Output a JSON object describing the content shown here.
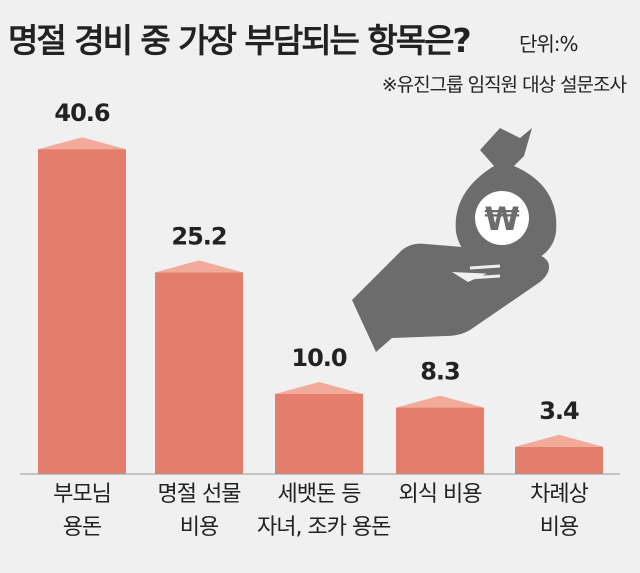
{
  "title": "명절 경비 중 가장 부담되는 항목은?",
  "unit_note": "단위:%",
  "source_note": "※유진그룹 임직원 대상 설문조사",
  "colors": {
    "bar": "#e37e6c",
    "bar_top": "#f2ab9b",
    "icon": "#6c6c6c",
    "background": "#f0f0f0",
    "baseline": "#999999"
  },
  "icons": [
    "money-bag-won-icon",
    "open-hand-icon"
  ],
  "chart_data": {
    "type": "bar",
    "title": "명절 경비 중 가장 부담되는 항목은?",
    "xlabel": "",
    "ylabel": "",
    "unit": "%",
    "ylim": [
      0,
      45
    ],
    "grid": false,
    "categories": [
      [
        "부모님",
        "용돈"
      ],
      [
        "명절 선물",
        "비용"
      ],
      [
        "세뱃돈 등",
        "자녀, 조카 용돈"
      ],
      [
        "외식 비용"
      ],
      [
        "차례상",
        "비용"
      ]
    ],
    "values": [
      40.6,
      25.2,
      10.0,
      8.3,
      3.4
    ],
    "value_labels": [
      "40.6",
      "25.2",
      "10.0",
      "8.3",
      "3.4"
    ]
  }
}
